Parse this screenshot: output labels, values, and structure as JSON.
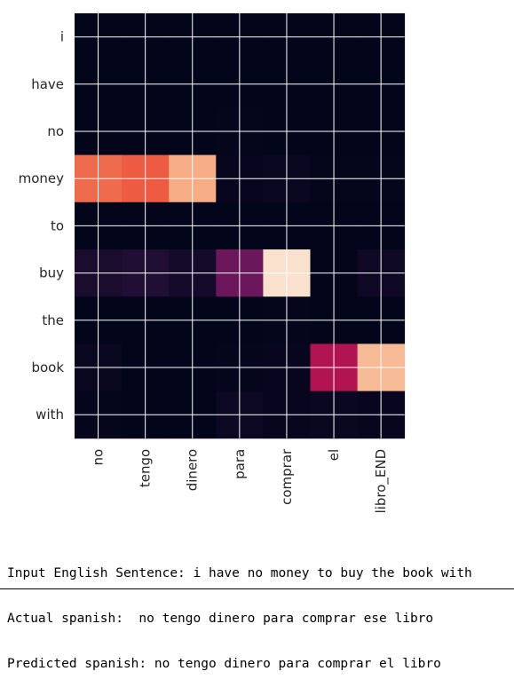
{
  "chart_data": {
    "type": "heatmap",
    "colormap": "rocket",
    "grid": true,
    "y_categories": [
      "i",
      "have",
      "no",
      "money",
      "to",
      "buy",
      "the",
      "book",
      "with"
    ],
    "x_categories": [
      "no",
      "tengo",
      "dinero",
      "para",
      "comprar",
      "el",
      "libro_END"
    ],
    "matrix": [
      [
        0.0,
        0.0,
        0.0,
        0.0,
        0.0,
        0.0,
        0.0
      ],
      [
        0.0,
        0.0,
        0.0,
        0.0,
        0.0,
        0.0,
        0.0
      ],
      [
        0.0,
        0.0,
        0.0,
        0.01,
        0.0,
        0.0,
        0.0
      ],
      [
        0.7,
        0.67,
        0.83,
        0.02,
        0.03,
        0.01,
        0.01
      ],
      [
        0.0,
        0.0,
        0.0,
        0.0,
        0.0,
        0.0,
        0.0
      ],
      [
        0.09,
        0.12,
        0.07,
        0.33,
        0.97,
        0.0,
        0.05
      ],
      [
        0.0,
        0.0,
        0.0,
        0.0,
        0.01,
        0.0,
        0.0
      ],
      [
        0.03,
        0.0,
        0.0,
        0.01,
        0.02,
        0.48,
        0.86
      ],
      [
        0.01,
        0.0,
        0.0,
        0.04,
        0.02,
        0.03,
        0.02
      ]
    ]
  },
  "console": {
    "line1": "Input English Sentence: i have no money to buy the book with",
    "line2": "Actual spanish:  no tengo dinero para comprar ese libro",
    "line3": "Predicted spanish: no tengo dinero para comprar el libro"
  }
}
